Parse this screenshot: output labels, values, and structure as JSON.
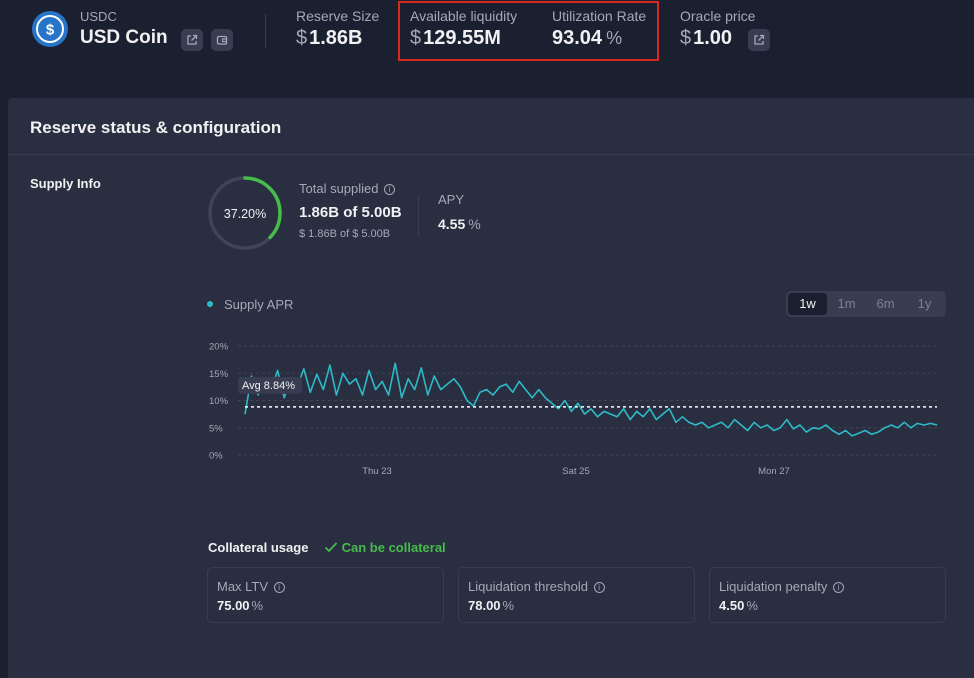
{
  "header": {
    "symbol": "USDC",
    "name": "USD Coin",
    "reserve_size": {
      "label": "Reserve Size",
      "currency": "$",
      "value": "1.86B"
    },
    "available_liquidity": {
      "label": "Available liquidity",
      "currency": "$",
      "value": "129.55M"
    },
    "utilization_rate": {
      "label": "Utilization Rate",
      "value": "93.04",
      "suffix": "%"
    },
    "oracle_price": {
      "label": "Oracle price",
      "currency": "$",
      "value": "1.00"
    }
  },
  "card": {
    "title": "Reserve status & configuration",
    "supply_info": {
      "section_label": "Supply Info",
      "ring_percent": "37.20%",
      "ring_fraction": 0.372,
      "total_supplied_label": "Total supplied",
      "total_supplied_value": "1.86B of 5.00B",
      "total_supplied_usd": "$ 1.86B of $ 5.00B",
      "apy_label": "APY",
      "apy_value": "4.55",
      "apy_suffix": "%"
    },
    "chart": {
      "legend": "Supply APR",
      "ranges": [
        "1w",
        "1m",
        "6m",
        "1y"
      ],
      "active_range": "1w",
      "avg_label": "Avg 8.84%"
    },
    "collateral": {
      "label": "Collateral usage",
      "status": "Can be collateral",
      "metrics": [
        {
          "label": "Max LTV",
          "value": "75.00",
          "suffix": "%"
        },
        {
          "label": "Liquidation threshold",
          "value": "78.00",
          "suffix": "%"
        },
        {
          "label": "Liquidation penalty",
          "value": "4.50",
          "suffix": "%"
        }
      ]
    }
  },
  "colors": {
    "accent": "#2ebac6",
    "ring_progress": "#46bc4b",
    "success": "#46bc4b",
    "highlight_border": "#d8291f",
    "usdc_blue": "#2775ca"
  },
  "icons": {
    "coin": "usdc-logo-icon",
    "external_link": "external-link-icon",
    "wallet": "wallet-icon",
    "info": "info-icon",
    "check": "check-icon"
  },
  "chart_data": {
    "type": "line",
    "title": "",
    "xlabel": "",
    "ylabel": "",
    "ylim": [
      0,
      20
    ],
    "y_ticks": [
      "20%",
      "15%",
      "10%",
      "5%",
      "0%"
    ],
    "x_ticks": [
      "Thu 23",
      "Sat 25",
      "Mon 27"
    ],
    "average": 8.84,
    "series": [
      {
        "name": "Supply APR",
        "values": [
          7.5,
          14.5,
          11.0,
          14.0,
          12.0,
          15.5,
          10.5,
          14.0,
          12.5,
          15.8,
          11.5,
          14.8,
          12.0,
          16.5,
          11.0,
          15.0,
          13.0,
          14.0,
          11.0,
          15.5,
          12.0,
          13.5,
          11.0,
          16.8,
          10.5,
          14.0,
          12.0,
          16.0,
          11.0,
          14.5,
          12.0,
          13.0,
          14.0,
          12.5,
          10.0,
          9.0,
          11.5,
          12.0,
          11.0,
          12.5,
          13.0,
          11.5,
          13.5,
          12.0,
          10.5,
          12.0,
          10.5,
          9.5,
          8.5,
          10.0,
          8.0,
          9.5,
          7.5,
          8.5,
          7.0,
          8.0,
          7.5,
          7.0,
          8.5,
          6.5,
          8.0,
          7.0,
          8.5,
          6.5,
          7.5,
          8.5,
          6.0,
          7.0,
          6.0,
          5.5,
          6.0,
          5.0,
          5.5,
          6.0,
          5.0,
          6.5,
          5.5,
          4.5,
          6.0,
          5.0,
          5.5,
          4.5,
          5.0,
          6.5,
          4.8,
          5.5,
          4.2,
          5.0,
          4.8,
          5.5,
          4.5,
          3.8,
          4.5,
          3.5,
          4.0,
          4.5,
          3.8,
          4.2,
          5.0,
          5.5,
          5.0,
          6.0,
          5.0,
          5.8,
          5.5,
          5.8,
          5.5
        ]
      }
    ]
  }
}
